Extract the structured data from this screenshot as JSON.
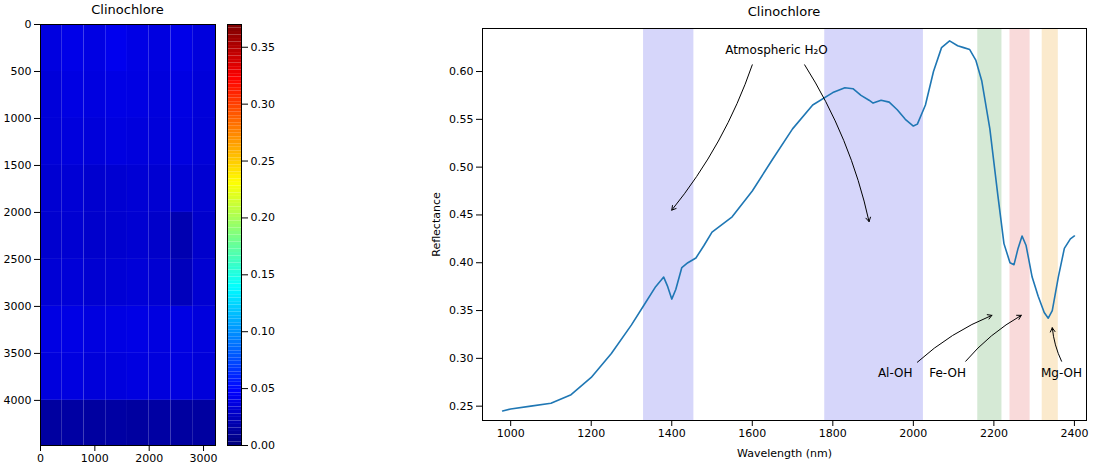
{
  "chart_data": [
    {
      "type": "heatmap",
      "title": "Clinochlore",
      "x_bins": [
        0,
        400,
        800,
        1200,
        1600,
        2000,
        2400,
        2800,
        3220
      ],
      "y_bins": [
        0,
        500,
        1000,
        1500,
        2000,
        2500,
        3000,
        3500,
        4000,
        4480
      ],
      "cells": [
        [
          0.035,
          0.038,
          0.036,
          0.04,
          0.037,
          0.035,
          0.038,
          0.034
        ],
        [
          0.033,
          0.036,
          0.035,
          0.037,
          0.036,
          0.034,
          0.036,
          0.033
        ],
        [
          0.032,
          0.034,
          0.033,
          0.035,
          0.034,
          0.033,
          0.035,
          0.032
        ],
        [
          0.03,
          0.031,
          0.029,
          0.03,
          0.031,
          0.03,
          0.031,
          0.03
        ],
        [
          0.029,
          0.03,
          0.028,
          0.029,
          0.03,
          0.027,
          0.018,
          0.028
        ],
        [
          0.031,
          0.032,
          0.03,
          0.031,
          0.032,
          0.03,
          0.022,
          0.03
        ],
        [
          0.036,
          0.037,
          0.035,
          0.036,
          0.037,
          0.035,
          0.036,
          0.034
        ],
        [
          0.034,
          0.035,
          0.033,
          0.034,
          0.035,
          0.034,
          0.035,
          0.033
        ],
        [
          0.012,
          0.013,
          0.012,
          0.013,
          0.012,
          0.013,
          0.012,
          0.012
        ]
      ],
      "xlim": [
        0,
        3220
      ],
      "ylim": [
        4480,
        0
      ],
      "xticks": [
        0,
        1000,
        2000,
        3000
      ],
      "yticks": [
        0,
        500,
        1000,
        1500,
        2000,
        2500,
        3000,
        3500,
        4000
      ],
      "colorbar": {
        "lim": [
          0,
          0.37
        ],
        "ticks": [
          {
            "value": 0,
            "label": "0.00"
          },
          {
            "value": 0.05,
            "label": "0.05"
          },
          {
            "value": 0.1,
            "label": "0.10"
          },
          {
            "value": 0.15,
            "label": "0.15"
          },
          {
            "value": 0.2,
            "label": "0.20"
          },
          {
            "value": 0.25,
            "label": "0.25"
          },
          {
            "value": 0.3,
            "label": "0.30"
          },
          {
            "value": 0.35,
            "label": "0.35"
          }
        ]
      }
    },
    {
      "type": "line",
      "title": "Clinochlore",
      "x_label": "Wavelength (nm)",
      "y_label": "Reflectance",
      "x": [
        980,
        1000,
        1050,
        1100,
        1150,
        1200,
        1250,
        1300,
        1330,
        1360,
        1380,
        1390,
        1400,
        1410,
        1425,
        1440,
        1460,
        1480,
        1500,
        1550,
        1600,
        1650,
        1700,
        1750,
        1800,
        1830,
        1850,
        1870,
        1890,
        1900,
        1920,
        1940,
        1960,
        1980,
        2000,
        2010,
        2030,
        2050,
        2070,
        2090,
        2110,
        2125,
        2140,
        2155,
        2170,
        2190,
        2210,
        2225,
        2240,
        2250,
        2260,
        2270,
        2280,
        2295,
        2310,
        2325,
        2335,
        2345,
        2360,
        2375,
        2390,
        2400
      ],
      "values": [
        0.245,
        0.247,
        0.25,
        0.253,
        0.262,
        0.28,
        0.305,
        0.335,
        0.355,
        0.375,
        0.385,
        0.375,
        0.362,
        0.372,
        0.395,
        0.4,
        0.405,
        0.418,
        0.432,
        0.448,
        0.475,
        0.508,
        0.54,
        0.565,
        0.578,
        0.583,
        0.582,
        0.575,
        0.57,
        0.567,
        0.57,
        0.568,
        0.56,
        0.55,
        0.543,
        0.545,
        0.565,
        0.6,
        0.625,
        0.632,
        0.627,
        0.625,
        0.623,
        0.612,
        0.59,
        0.54,
        0.47,
        0.42,
        0.4,
        0.398,
        0.415,
        0.428,
        0.418,
        0.385,
        0.365,
        0.348,
        0.342,
        0.35,
        0.385,
        0.415,
        0.425,
        0.428
      ],
      "color": "#1f77b4",
      "xlim": [
        930,
        2430
      ],
      "ylim": [
        0.235,
        0.645
      ],
      "xticks": [
        1000,
        1200,
        1400,
        1600,
        1800,
        2000,
        2200,
        2400
      ],
      "yticks": [
        {
          "value": 0.25,
          "label": "0.25"
        },
        {
          "value": 0.3,
          "label": "0.30"
        },
        {
          "value": 0.35,
          "label": "0.35"
        },
        {
          "value": 0.4,
          "label": "0.40"
        },
        {
          "value": 0.45,
          "label": "0.45"
        },
        {
          "value": 0.5,
          "label": "0.50"
        },
        {
          "value": 0.55,
          "label": "0.55"
        },
        {
          "value": 0.6,
          "label": "0.60"
        }
      ],
      "bands": [
        {
          "x1": 1330,
          "x2": 1455,
          "color": "#d6d6fa"
        },
        {
          "x1": 1780,
          "x2": 2025,
          "color": "#d6d6fa"
        },
        {
          "x1": 2160,
          "x2": 2220,
          "color": "#d5e9d5"
        },
        {
          "x1": 2240,
          "x2": 2290,
          "color": "#f9dada"
        },
        {
          "x1": 2320,
          "x2": 2360,
          "color": "#fbeacd"
        }
      ],
      "annotations": [
        {
          "text": "Atmospheric H₂O",
          "x": 1660,
          "y": 0.622,
          "arrows": [
            {
              "from": [
                1600,
                0.607
              ],
              "to": [
                1400,
                0.455
              ]
            },
            {
              "from": [
                1730,
                0.607
              ],
              "to": [
                1890,
                0.443
              ]
            }
          ]
        },
        {
          "text": "Al-OH",
          "x": 1955,
          "y": 0.285,
          "arrows": [
            {
              "from": [
                2010,
                0.296
              ],
              "to": [
                2195,
                0.345
              ]
            }
          ]
        },
        {
          "text": "Fe-OH",
          "x": 2085,
          "y": 0.285,
          "arrows": [
            {
              "from": [
                2130,
                0.297
              ],
              "to": [
                2268,
                0.345
              ]
            }
          ]
        },
        {
          "text": "Mg-OH",
          "x": 2368,
          "y": 0.285,
          "arrows": [
            {
              "from": [
                2368,
                0.297
              ],
              "to": [
                2345,
                0.332
              ]
            }
          ]
        }
      ]
    }
  ]
}
